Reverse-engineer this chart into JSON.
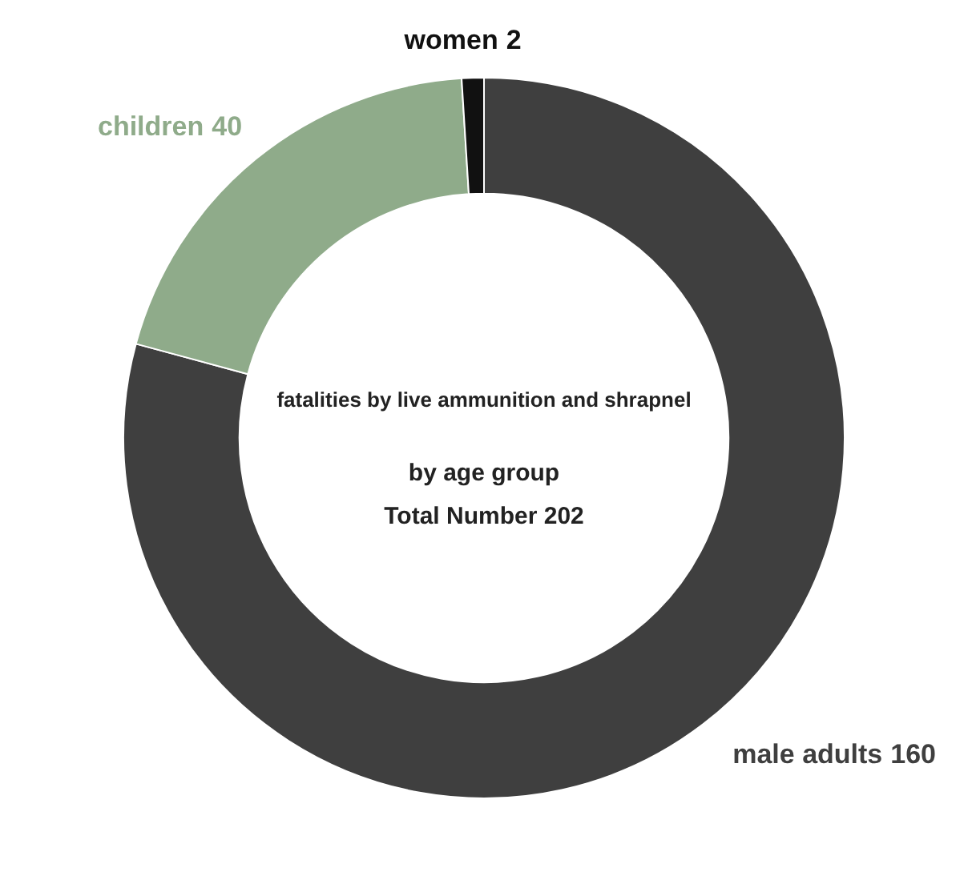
{
  "chart_data": {
    "type": "donut",
    "title": "fatalities by live ammunition and shrapnel",
    "subtitle": "by age group",
    "annotations": [
      "Total Number 202"
    ],
    "categories": [
      "male adults",
      "children",
      "women"
    ],
    "values": [
      160,
      40,
      2
    ],
    "colors": [
      "#3f3f3f",
      "#8fab8a",
      "#111111"
    ],
    "data_labels": true
  }
}
